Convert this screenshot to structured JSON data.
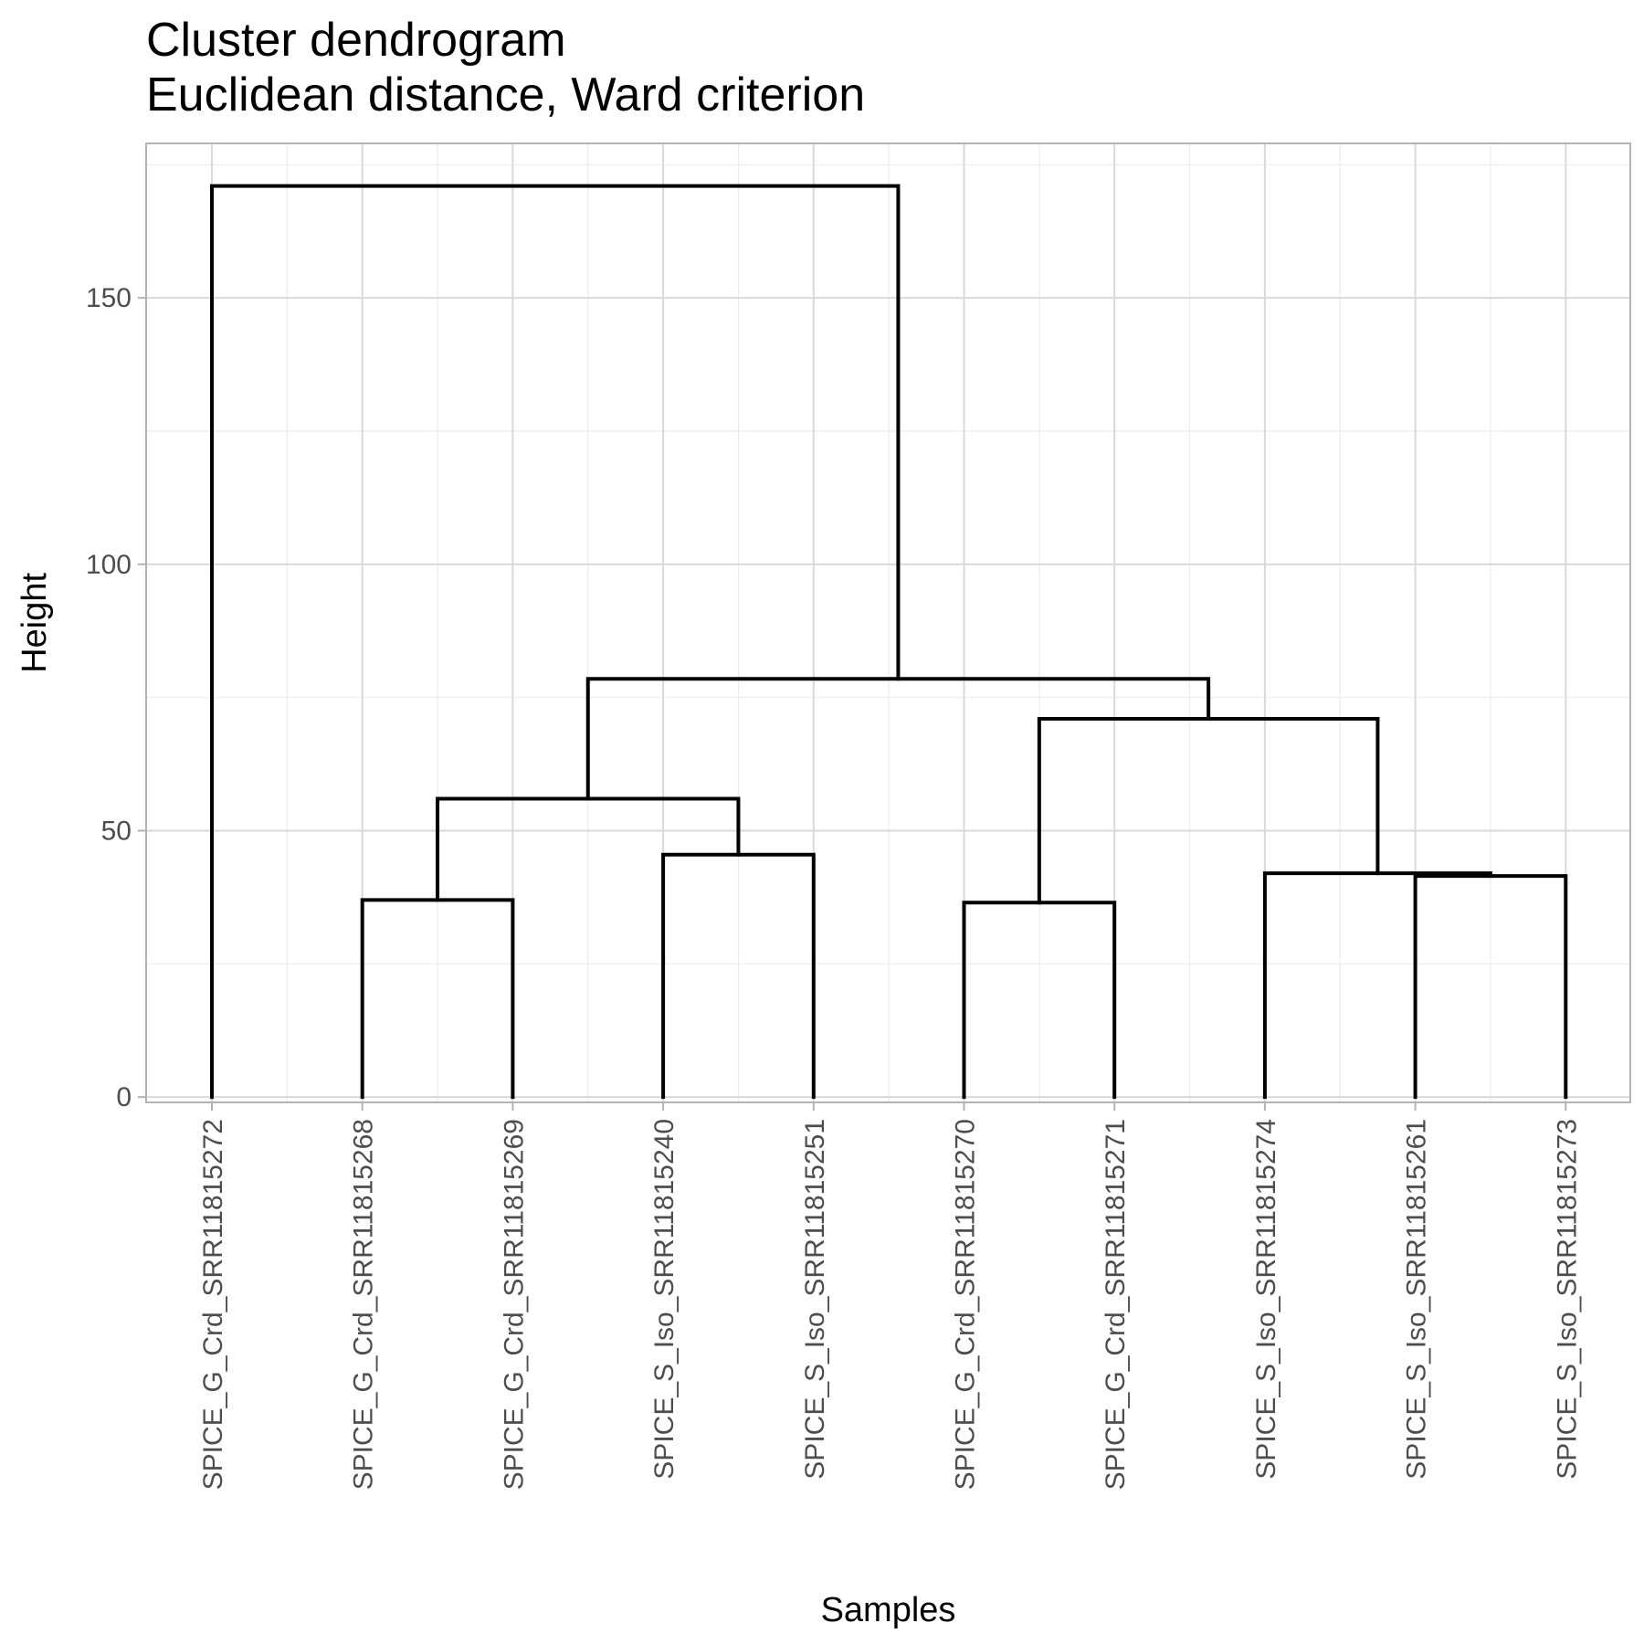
{
  "chart_data": {
    "type": "dendrogram",
    "title": "Cluster dendrogram",
    "subtitle": "Euclidean distance, Ward criterion",
    "xlabel": "Samples",
    "ylabel": "Height",
    "ylim": [
      -1,
      179
    ],
    "yticks": [
      0,
      50,
      100,
      150
    ],
    "grid": true,
    "leaves": [
      "SPICE_G_Crd_SRR11815272",
      "SPICE_G_Crd_SRR11815268",
      "SPICE_G_Crd_SRR11815269",
      "SPICE_S_Iso_SRR11815240",
      "SPICE_S_Iso_SRR11815251",
      "SPICE_G_Crd_SRR11815270",
      "SPICE_G_Crd_SRR11815271",
      "SPICE_S_Iso_SRR11815274",
      "SPICE_S_Iso_SRR11815261",
      "SPICE_S_Iso_SRR11815273"
    ],
    "merges": [
      {
        "left": "SPICE_G_Crd_SRR11815268",
        "right": "SPICE_G_Crd_SRR11815269",
        "height": 37
      },
      {
        "left": "SPICE_S_Iso_SRR11815240",
        "right": "SPICE_S_Iso_SRR11815251",
        "height": 45.5
      },
      {
        "left": "SPICE_G_Crd_SRR11815270",
        "right": "SPICE_G_Crd_SRR11815271",
        "height": 36.5
      },
      {
        "left": "SPICE_S_Iso_SRR11815261",
        "right": "SPICE_S_Iso_SRR11815273",
        "height": 41.5
      },
      {
        "left": "SPICE_S_Iso_SRR11815274",
        "right": "cluster(SPICE_S_Iso_SRR11815261, SPICE_S_Iso_SRR11815273)",
        "height": 42
      },
      {
        "left": "cluster(SPICE_G_Crd_SRR11815268, SPICE_G_Crd_SRR11815269)",
        "right": "cluster(SPICE_S_Iso_SRR11815240, SPICE_S_Iso_SRR11815251)",
        "height": 56
      },
      {
        "left": "cluster(SPICE_G_Crd_SRR11815270, SPICE_G_Crd_SRR11815271)",
        "right": "cluster(SPICE_S_Iso_SRR11815274, SPICE_S_Iso_SRR11815261, SPICE_S_Iso_SRR11815273)",
        "height": 71
      },
      {
        "left": "cluster(SPICE_G_Crd_SRR11815268, SPICE_G_Crd_SRR11815269, SPICE_S_Iso_SRR11815240, SPICE_S_Iso_SRR11815251)",
        "right": "cluster(SPICE_G_Crd_SRR11815270, SPICE_G_Crd_SRR11815271, SPICE_S_Iso_SRR11815274, SPICE_S_Iso_SRR11815261, SPICE_S_Iso_SRR11815273)",
        "height": 78.5
      },
      {
        "left": "SPICE_G_Crd_SRR11815272",
        "right": "cluster(all others)",
        "height": 171
      }
    ],
    "colors": {
      "panel_border": "#b3b3b3",
      "grid_major": "#d9d9d9",
      "grid_minor": "#ebebeb",
      "tick_text": "#4d4d4d",
      "tree": "#000000"
    }
  }
}
